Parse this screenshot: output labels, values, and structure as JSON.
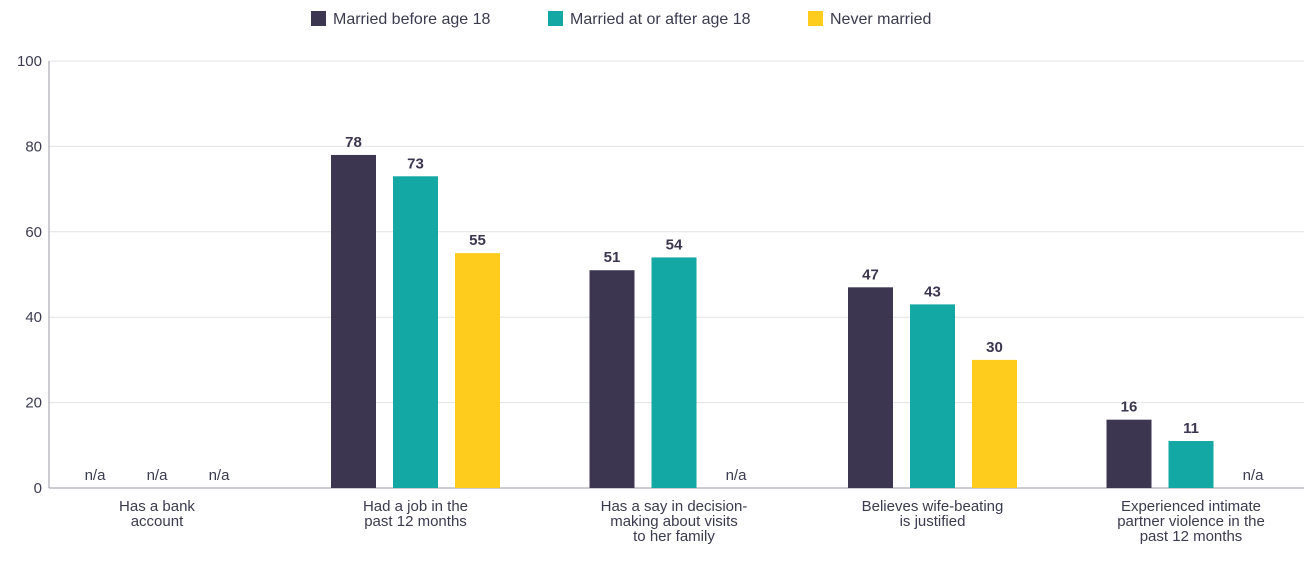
{
  "chart_data": {
    "type": "bar",
    "categories": [
      [
        "Has a bank",
        "account"
      ],
      [
        "Had a job in the",
        "past 12 months"
      ],
      [
        "Has a say in decision-",
        "making about visits",
        "to her family"
      ],
      [
        "Believes wife-beating",
        "is justified"
      ],
      [
        "Experienced intimate",
        "partner violence in the",
        "past 12 months"
      ]
    ],
    "series": [
      {
        "name": "Married before age 18",
        "color": "#3d3650",
        "values": [
          null,
          78,
          51,
          47,
          16
        ]
      },
      {
        "name": "Married at or after age 18",
        "color": "#13a8a3",
        "values": [
          null,
          73,
          54,
          43,
          11
        ]
      },
      {
        "name": "Never married",
        "color": "#fdcc1d",
        "values": [
          null,
          55,
          null,
          30,
          null
        ]
      }
    ],
    "missing_label": "n/a",
    "ylim": [
      0,
      100
    ],
    "yticks": [
      "0",
      "20",
      "40",
      "60",
      "80",
      "100"
    ],
    "legend_position": "top-center",
    "grid": true
  }
}
